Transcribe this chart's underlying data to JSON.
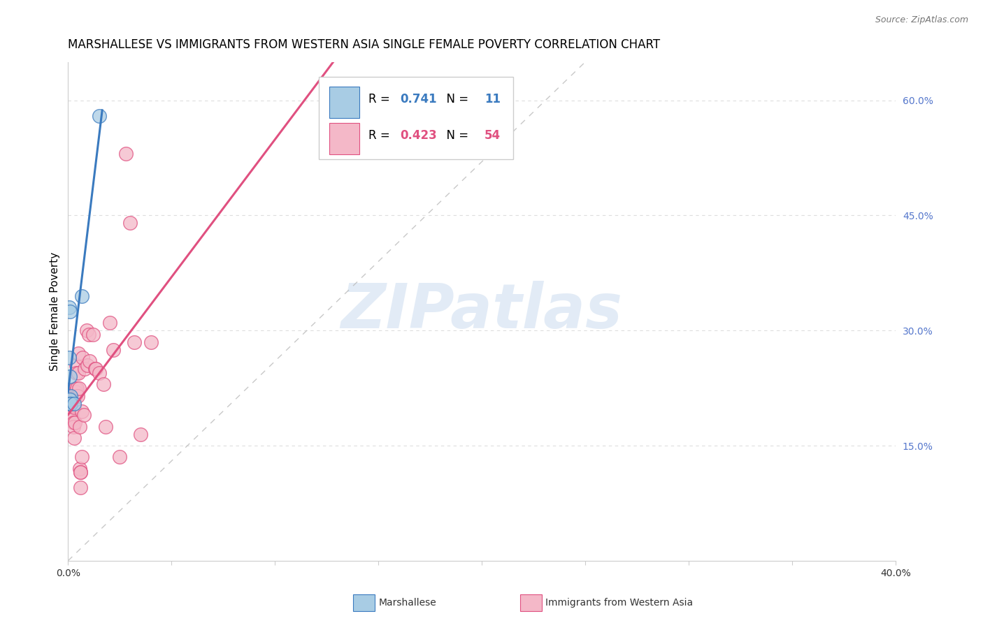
{
  "title": "MARSHALLESE VS IMMIGRANTS FROM WESTERN ASIA SINGLE FEMALE POVERTY CORRELATION CHART",
  "source": "Source: ZipAtlas.com",
  "ylabel": "Single Female Poverty",
  "xlim": [
    0.0,
    0.4
  ],
  "ylim": [
    0.0,
    0.65
  ],
  "x_ticks": [
    0.0,
    0.05,
    0.1,
    0.15,
    0.2,
    0.25,
    0.3,
    0.35,
    0.4
  ],
  "x_tick_labels": [
    "0.0%",
    "",
    "",
    "",
    "",
    "",
    "",
    "",
    "40.0%"
  ],
  "y_ticks_right": [
    0.15,
    0.3,
    0.45,
    0.6
  ],
  "y_tick_labels_right": [
    "15.0%",
    "30.0%",
    "45.0%",
    "60.0%"
  ],
  "blue_R": 0.741,
  "blue_N": 11,
  "pink_R": 0.423,
  "pink_N": 54,
  "blue_color": "#a8cce4",
  "pink_color": "#f4b8c8",
  "blue_line_color": "#3a7abf",
  "pink_line_color": "#e05080",
  "blue_scatter": [
    [
      0.0005,
      0.265
    ],
    [
      0.001,
      0.24
    ],
    [
      0.0005,
      0.33
    ],
    [
      0.0008,
      0.325
    ],
    [
      0.0012,
      0.215
    ],
    [
      0.001,
      0.21
    ],
    [
      0.001,
      0.205
    ],
    [
      0.0012,
      0.205
    ],
    [
      0.003,
      0.205
    ],
    [
      0.0065,
      0.345
    ],
    [
      0.015,
      0.58
    ]
  ],
  "pink_scatter": [
    [
      0.0005,
      0.215
    ],
    [
      0.0008,
      0.205
    ],
    [
      0.001,
      0.205
    ],
    [
      0.001,
      0.2
    ],
    [
      0.0012,
      0.2
    ],
    [
      0.0015,
      0.195
    ],
    [
      0.0018,
      0.195
    ],
    [
      0.002,
      0.19
    ],
    [
      0.002,
      0.185
    ],
    [
      0.0022,
      0.185
    ],
    [
      0.0025,
      0.18
    ],
    [
      0.0025,
      0.175
    ],
    [
      0.0028,
      0.16
    ],
    [
      0.003,
      0.215
    ],
    [
      0.003,
      0.2
    ],
    [
      0.0032,
      0.18
    ],
    [
      0.0035,
      0.225
    ],
    [
      0.0035,
      0.22
    ],
    [
      0.0035,
      0.215
    ],
    [
      0.0038,
      0.255
    ],
    [
      0.004,
      0.245
    ],
    [
      0.0042,
      0.225
    ],
    [
      0.0045,
      0.215
    ],
    [
      0.0048,
      0.27
    ],
    [
      0.005,
      0.245
    ],
    [
      0.0052,
      0.225
    ],
    [
      0.0055,
      0.175
    ],
    [
      0.0055,
      0.12
    ],
    [
      0.0058,
      0.115
    ],
    [
      0.006,
      0.095
    ],
    [
      0.006,
      0.115
    ],
    [
      0.0065,
      0.135
    ],
    [
      0.0068,
      0.195
    ],
    [
      0.007,
      0.265
    ],
    [
      0.0075,
      0.19
    ],
    [
      0.008,
      0.25
    ],
    [
      0.009,
      0.3
    ],
    [
      0.0095,
      0.255
    ],
    [
      0.01,
      0.295
    ],
    [
      0.0105,
      0.26
    ],
    [
      0.012,
      0.295
    ],
    [
      0.013,
      0.25
    ],
    [
      0.0135,
      0.25
    ],
    [
      0.015,
      0.245
    ],
    [
      0.017,
      0.23
    ],
    [
      0.018,
      0.175
    ],
    [
      0.02,
      0.31
    ],
    [
      0.022,
      0.275
    ],
    [
      0.025,
      0.135
    ],
    [
      0.028,
      0.53
    ],
    [
      0.03,
      0.44
    ],
    [
      0.032,
      0.285
    ],
    [
      0.035,
      0.165
    ],
    [
      0.04,
      0.285
    ]
  ],
  "grid_color": "#dedede",
  "background_color": "#ffffff",
  "title_fontsize": 12,
  "label_fontsize": 11,
  "tick_fontsize": 10,
  "axis_label_color": "#5577cc",
  "watermark_color": "#d0dff0",
  "watermark_alpha": 0.6
}
